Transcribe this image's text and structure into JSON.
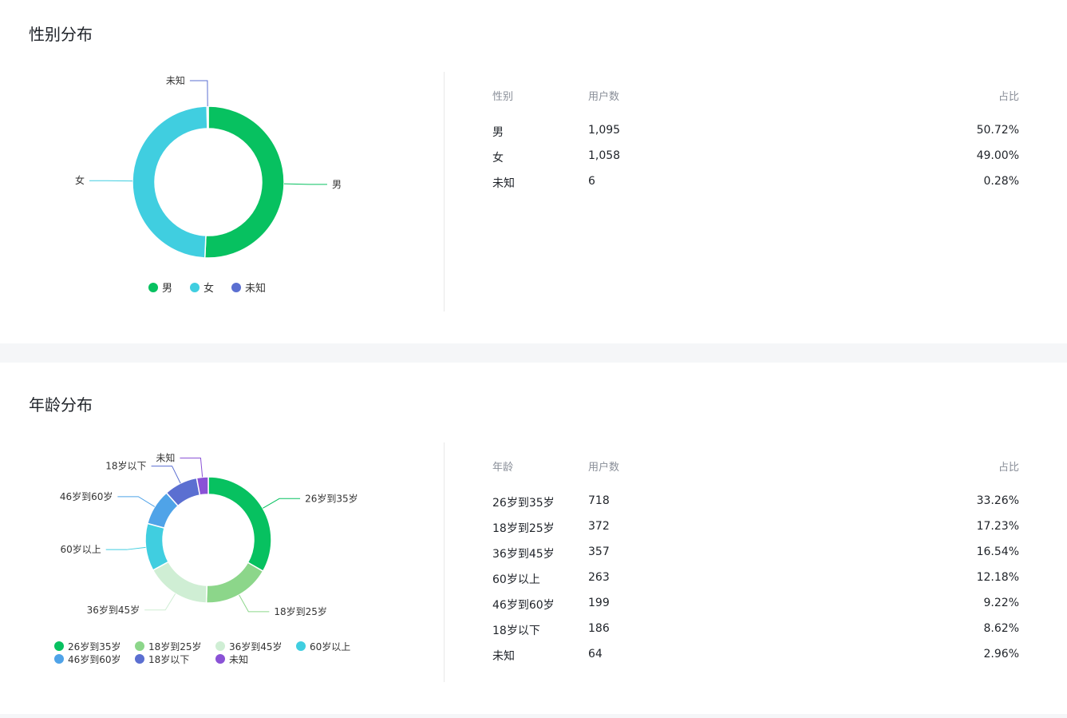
{
  "gender_section": {
    "title": "性别分布",
    "table": {
      "headers": [
        "性别",
        "用户数",
        "占比"
      ],
      "rows": [
        [
          "男",
          "1,095",
          "50.72%"
        ],
        [
          "女",
          "1,058",
          "49.00%"
        ],
        [
          "未知",
          "6",
          "0.28%"
        ]
      ]
    }
  },
  "age_section": {
    "title": "年龄分布",
    "table": {
      "headers": [
        "年龄",
        "用户数",
        "占比"
      ],
      "rows": [
        [
          "26岁到35岁",
          "718",
          "33.26%"
        ],
        [
          "18岁到25岁",
          "372",
          "17.23%"
        ],
        [
          "36岁到45岁",
          "357",
          "16.54%"
        ],
        [
          "60岁以上",
          "263",
          "12.18%"
        ],
        [
          "46岁到60岁",
          "199",
          "9.22%"
        ],
        [
          "18岁以下",
          "186",
          "8.62%"
        ],
        [
          "未知",
          "64",
          "2.96%"
        ]
      ]
    }
  },
  "chart_data": [
    {
      "type": "pie",
      "title": "性别分布",
      "categories": [
        "男",
        "女",
        "未知"
      ],
      "values": [
        1095,
        1058,
        6
      ],
      "colors": [
        "#07c160",
        "#40cee0",
        "#5b6fd1"
      ],
      "legend_position": "bottom"
    },
    {
      "type": "pie",
      "title": "年龄分布",
      "categories": [
        "26岁到35岁",
        "18岁到25岁",
        "36岁到45岁",
        "60岁以上",
        "46岁到60岁",
        "18岁以下",
        "未知"
      ],
      "values": [
        718,
        372,
        357,
        263,
        199,
        186,
        64
      ],
      "colors": [
        "#07c160",
        "#8cd68a",
        "#cfeed4",
        "#40cee0",
        "#4fa3e8",
        "#5b6fd1",
        "#8a52d6"
      ],
      "legend_position": "bottom"
    }
  ]
}
